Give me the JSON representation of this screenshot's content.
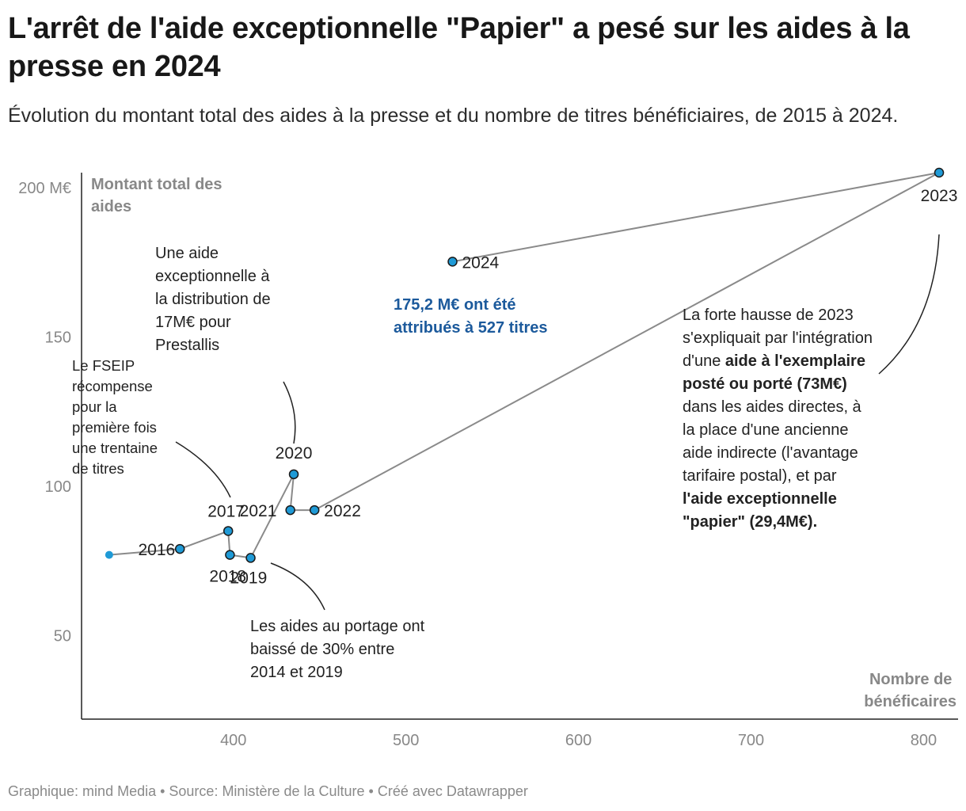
{
  "title": "L'arrêt de l'aide exceptionnelle \"Papier\" a pesé sur les aides à la presse en 2024",
  "subtitle": "Évolution du montant total des aides à la presse et du nombre de titres bénéficiaires, de 2015 à 2024.",
  "footer": "Graphique: mind Media • Source: Ministère de la Culture • Créé avec Datawrapper",
  "colors": {
    "point": "#1f9ad6",
    "line": "#8a8a8a",
    "highlight": "#1c5a9c",
    "axis": "#222222"
  },
  "annotations": {
    "prestalis": "Une aide exceptionnelle à la distribution de 17M€ pour Prestallis",
    "fseip": "Le FSEIP récompense pour la première fois une trentaine de titres",
    "portage": "Les aides au portage ont baissé de 30% entre 2014 et 2019",
    "highlight_2024": "175,2 M€ ont été attribués à 527 titres",
    "hausse_2023_part1": "La forte hausse de 2023 s'expliquait par l'intégration d'une ",
    "hausse_2023_bold1": "aide à l'exemplaire posté ou porté (73M€)",
    "hausse_2023_part2": " dans les aides directes, à la place d'une ancienne aide indirecte (l'avantage tarifaire postal), et par ",
    "hausse_2023_bold2": "l'aide exceptionnelle \"papier\" (29,4M€)."
  },
  "chart_data": {
    "type": "scatter",
    "connected": true,
    "ylabel": "Montant total des aides",
    "xlabel": "Nombre de bénéficaires",
    "xlim": [
      312,
      820
    ],
    "ylim": [
      22,
      205
    ],
    "xticks": [
      400,
      500,
      600,
      700,
      800
    ],
    "yticks": [
      {
        "value": 50,
        "label": "50"
      },
      {
        "value": 100,
        "label": "100"
      },
      {
        "value": 150,
        "label": "150"
      },
      {
        "value": 200,
        "label": "200 M€"
      }
    ],
    "grid": false,
    "points": [
      {
        "label": "",
        "x": 328,
        "y": 77
      },
      {
        "label": "2016",
        "x": 369,
        "y": 79
      },
      {
        "label": "2017",
        "x": 397,
        "y": 85
      },
      {
        "label": "2018",
        "x": 398,
        "y": 77
      },
      {
        "label": "2019",
        "x": 410,
        "y": 76
      },
      {
        "label": "2020",
        "x": 435,
        "y": 104
      },
      {
        "label": "2021",
        "x": 433,
        "y": 92
      },
      {
        "label": "2022",
        "x": 447,
        "y": 92
      },
      {
        "label": "2023",
        "x": 809,
        "y": 205
      },
      {
        "label": "2024",
        "x": 527,
        "y": 175.2
      }
    ]
  }
}
